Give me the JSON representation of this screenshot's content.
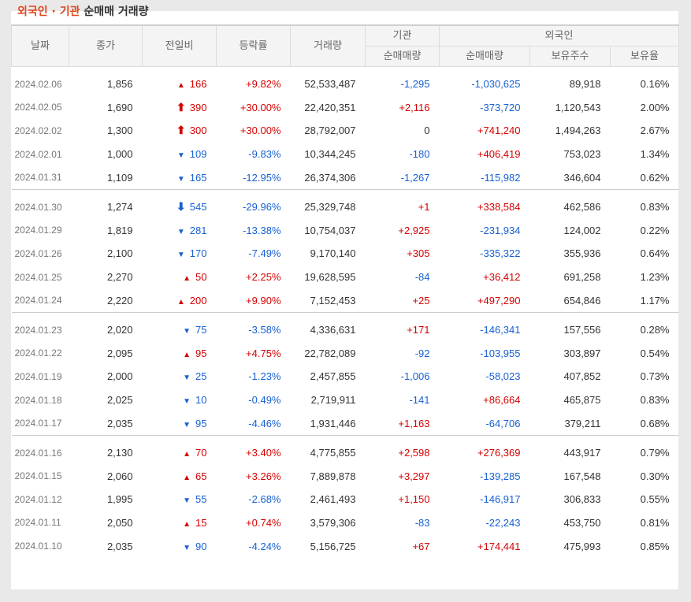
{
  "heading": {
    "highlight": "외국인 · 기관",
    "rest": "순매매 거래량"
  },
  "columns": {
    "date": "날짜",
    "close": "종가",
    "diff": "전일비",
    "rate": "등락률",
    "volume": "거래량",
    "inst_group": "기관",
    "inst_net": "순매매량",
    "foreign_group": "외국인",
    "foreign_net": "순매매량",
    "foreign_hold": "보유주수",
    "foreign_ratio": "보유율"
  },
  "colors": {
    "up": "#d60000",
    "down": "#1760d2",
    "neutral": "#333333"
  },
  "groups": [
    [
      {
        "date": "2024.02.06",
        "close": "1,856",
        "arrow": "up",
        "diff": "166",
        "rate": "+9.82%",
        "volume": "52,533,487",
        "inst": "-1,295",
        "foreign": "-1,030,625",
        "hold": "89,918",
        "ratio": "0.16%"
      },
      {
        "date": "2024.02.05",
        "close": "1,690",
        "arrow": "upper",
        "diff": "390",
        "rate": "+30.00%",
        "volume": "22,420,351",
        "inst": "+2,116",
        "foreign": "-373,720",
        "hold": "1,120,543",
        "ratio": "2.00%"
      },
      {
        "date": "2024.02.02",
        "close": "1,300",
        "arrow": "upper",
        "diff": "300",
        "rate": "+30.00%",
        "volume": "28,792,007",
        "inst": "0",
        "foreign": "+741,240",
        "hold": "1,494,263",
        "ratio": "2.67%"
      },
      {
        "date": "2024.02.01",
        "close": "1,000",
        "arrow": "down",
        "diff": "109",
        "rate": "-9.83%",
        "volume": "10,344,245",
        "inst": "-180",
        "foreign": "+406,419",
        "hold": "753,023",
        "ratio": "1.34%"
      },
      {
        "date": "2024.01.31",
        "close": "1,109",
        "arrow": "down",
        "diff": "165",
        "rate": "-12.95%",
        "volume": "26,374,306",
        "inst": "-1,267",
        "foreign": "-115,982",
        "hold": "346,604",
        "ratio": "0.62%"
      }
    ],
    [
      {
        "date": "2024.01.30",
        "close": "1,274",
        "arrow": "lower",
        "diff": "545",
        "rate": "-29.96%",
        "volume": "25,329,748",
        "inst": "+1",
        "foreign": "+338,584",
        "hold": "462,586",
        "ratio": "0.83%"
      },
      {
        "date": "2024.01.29",
        "close": "1,819",
        "arrow": "down",
        "diff": "281",
        "rate": "-13.38%",
        "volume": "10,754,037",
        "inst": "+2,925",
        "foreign": "-231,934",
        "hold": "124,002",
        "ratio": "0.22%"
      },
      {
        "date": "2024.01.26",
        "close": "2,100",
        "arrow": "down",
        "diff": "170",
        "rate": "-7.49%",
        "volume": "9,170,140",
        "inst": "+305",
        "foreign": "-335,322",
        "hold": "355,936",
        "ratio": "0.64%"
      },
      {
        "date": "2024.01.25",
        "close": "2,270",
        "arrow": "up",
        "diff": "50",
        "rate": "+2.25%",
        "volume": "19,628,595",
        "inst": "-84",
        "foreign": "+36,412",
        "hold": "691,258",
        "ratio": "1.23%"
      },
      {
        "date": "2024.01.24",
        "close": "2,220",
        "arrow": "up",
        "diff": "200",
        "rate": "+9.90%",
        "volume": "7,152,453",
        "inst": "+25",
        "foreign": "+497,290",
        "hold": "654,846",
        "ratio": "1.17%"
      }
    ],
    [
      {
        "date": "2024.01.23",
        "close": "2,020",
        "arrow": "down",
        "diff": "75",
        "rate": "-3.58%",
        "volume": "4,336,631",
        "inst": "+171",
        "foreign": "-146,341",
        "hold": "157,556",
        "ratio": "0.28%"
      },
      {
        "date": "2024.01.22",
        "close": "2,095",
        "arrow": "up",
        "diff": "95",
        "rate": "+4.75%",
        "volume": "22,782,089",
        "inst": "-92",
        "foreign": "-103,955",
        "hold": "303,897",
        "ratio": "0.54%"
      },
      {
        "date": "2024.01.19",
        "close": "2,000",
        "arrow": "down",
        "diff": "25",
        "rate": "-1.23%",
        "volume": "2,457,855",
        "inst": "-1,006",
        "foreign": "-58,023",
        "hold": "407,852",
        "ratio": "0.73%"
      },
      {
        "date": "2024.01.18",
        "close": "2,025",
        "arrow": "down",
        "diff": "10",
        "rate": "-0.49%",
        "volume": "2,719,911",
        "inst": "-141",
        "foreign": "+86,664",
        "hold": "465,875",
        "ratio": "0.83%"
      },
      {
        "date": "2024.01.17",
        "close": "2,035",
        "arrow": "down",
        "diff": "95",
        "rate": "-4.46%",
        "volume": "1,931,446",
        "inst": "+1,163",
        "foreign": "-64,706",
        "hold": "379,211",
        "ratio": "0.68%"
      }
    ],
    [
      {
        "date": "2024.01.16",
        "close": "2,130",
        "arrow": "up",
        "diff": "70",
        "rate": "+3.40%",
        "volume": "4,775,855",
        "inst": "+2,598",
        "foreign": "+276,369",
        "hold": "443,917",
        "ratio": "0.79%"
      },
      {
        "date": "2024.01.15",
        "close": "2,060",
        "arrow": "up",
        "diff": "65",
        "rate": "+3.26%",
        "volume": "7,889,878",
        "inst": "+3,297",
        "foreign": "-139,285",
        "hold": "167,548",
        "ratio": "0.30%"
      },
      {
        "date": "2024.01.12",
        "close": "1,995",
        "arrow": "down",
        "diff": "55",
        "rate": "-2.68%",
        "volume": "2,461,493",
        "inst": "+1,150",
        "foreign": "-146,917",
        "hold": "306,833",
        "ratio": "0.55%"
      },
      {
        "date": "2024.01.11",
        "close": "2,050",
        "arrow": "up",
        "diff": "15",
        "rate": "+0.74%",
        "volume": "3,579,306",
        "inst": "-83",
        "foreign": "-22,243",
        "hold": "453,750",
        "ratio": "0.81%"
      },
      {
        "date": "2024.01.10",
        "close": "2,035",
        "arrow": "down",
        "diff": "90",
        "rate": "-4.24%",
        "volume": "5,156,725",
        "inst": "+67",
        "foreign": "+174,441",
        "hold": "475,993",
        "ratio": "0.85%"
      }
    ]
  ]
}
